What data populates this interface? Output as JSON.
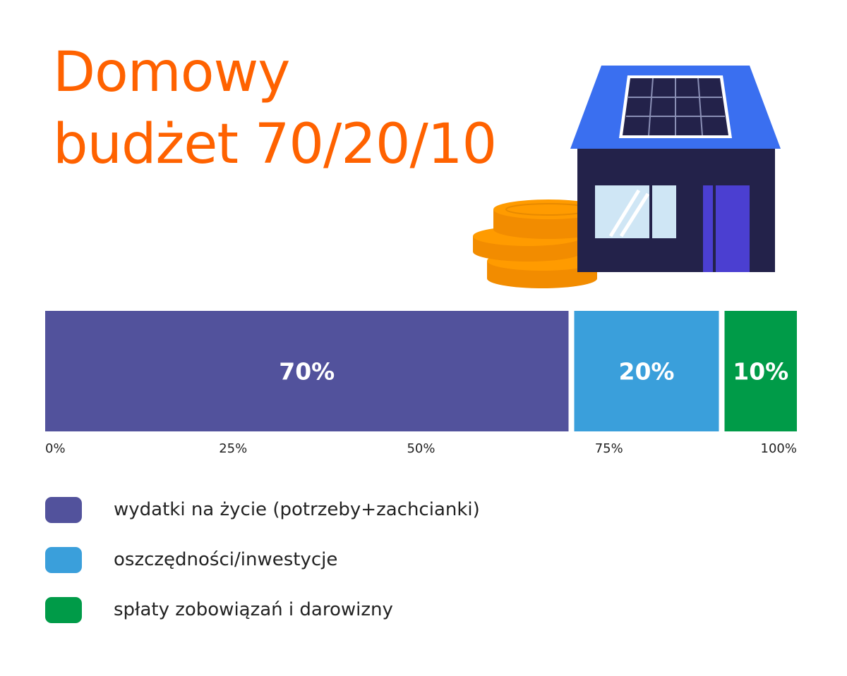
{
  "title": {
    "line1": "Domowy",
    "line2": "budżet 70/20/10",
    "color": "#ff6200"
  },
  "illustration": {
    "roof_color": "#3a6ff0",
    "wall_color": "#23224a",
    "door_color": "#4b3fd1",
    "window_color": "#cfe6f5",
    "coin_color": "#ff9b00"
  },
  "chart_data": {
    "type": "bar",
    "orientation": "horizontal-stacked",
    "categories": [
      "wydatki na życie (potrzeby+zachcianki)",
      "oszczędności/inwestycje",
      "spłaty zobowiązań i darowizny"
    ],
    "values": [
      70,
      20,
      10
    ],
    "data_labels": [
      "70%",
      "20%",
      "10%"
    ],
    "colors": [
      "#52529c",
      "#3a9fdb",
      "#009b48"
    ],
    "xlim": [
      0,
      100
    ],
    "xticks": [
      0,
      25,
      50,
      75,
      100
    ],
    "xtick_labels": [
      "0%",
      "25%",
      "50%",
      "75%",
      "100%"
    ],
    "grid": false,
    "legend_position": "bottom"
  }
}
